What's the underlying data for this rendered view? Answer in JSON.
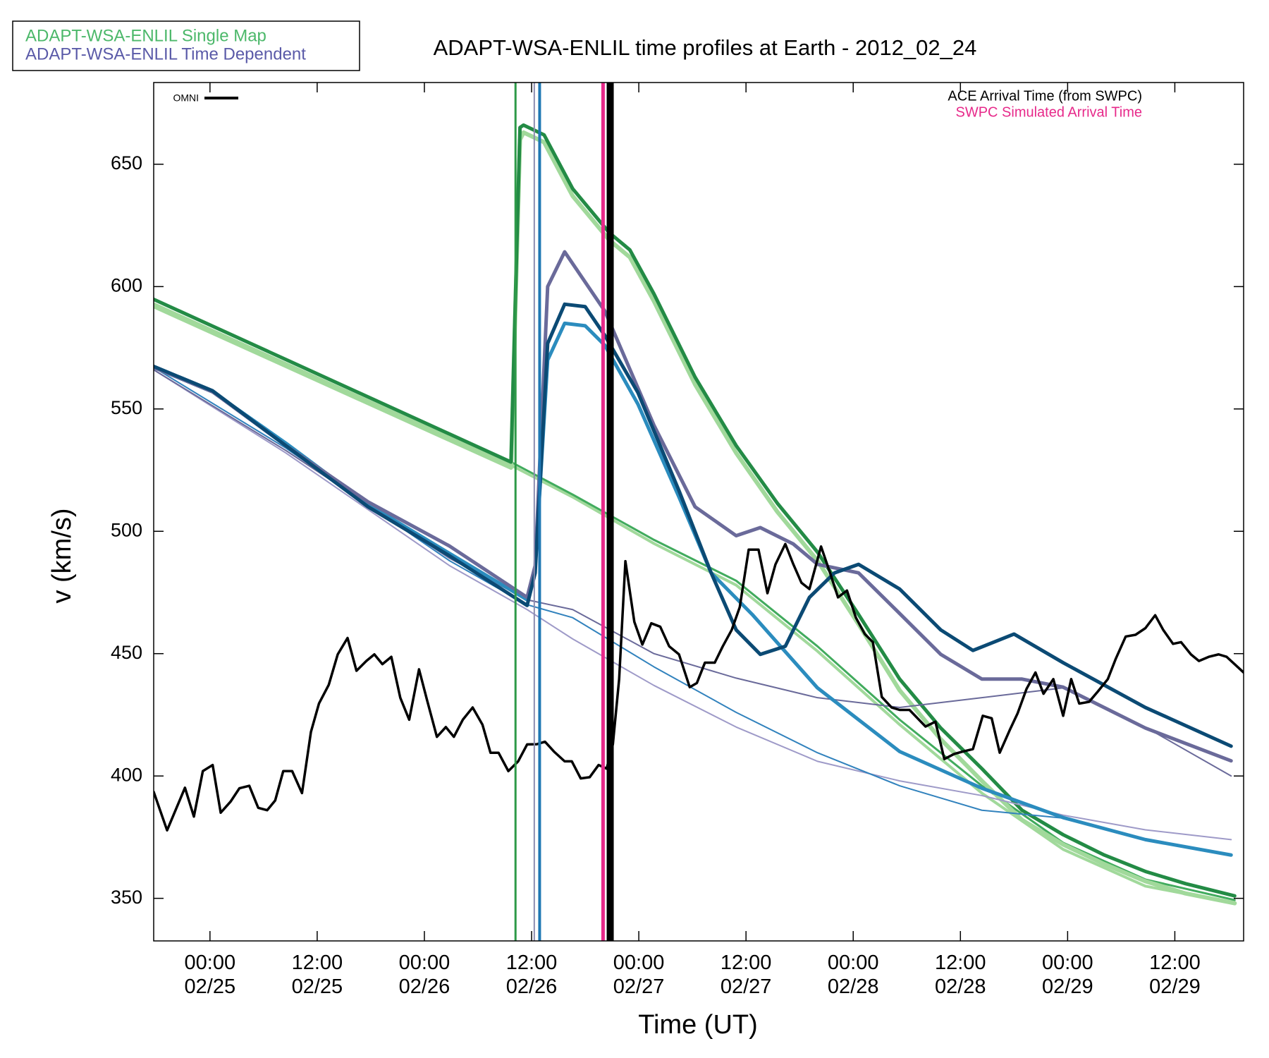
{
  "chart_data": {
    "type": "line",
    "title": "ADAPT-WSA-ENLIL time profiles at Earth - 2012_02_24",
    "x_label": "Time (UT)",
    "y_label": "v (km/s)",
    "legend": [
      {
        "name": "ADAPT-WSA-ENLIL Single Map",
        "color": "#4cb86a"
      },
      {
        "name": "ADAPT-WSA-ENLIL Time Dependent",
        "color": "#5a5aa8"
      }
    ],
    "xlim": [
      -6.3,
      115.7
    ],
    "ylim": [
      332.6,
      683.4
    ],
    "xticks": [
      {
        "value": 0,
        "label": "00:00\n02/25"
      },
      {
        "value": 12,
        "label": "12:00\n02/25"
      },
      {
        "value": 24,
        "label": "00:00\n02/26"
      },
      {
        "value": 36,
        "label": "12:00\n02/26"
      },
      {
        "value": 48,
        "label": "00:00\n02/27"
      },
      {
        "value": 60,
        "label": "12:00\n02/27"
      },
      {
        "value": 72,
        "label": "00:00\n02/28"
      },
      {
        "value": 84,
        "label": "12:00\n02/28"
      },
      {
        "value": 96,
        "label": "00:00\n02/29"
      },
      {
        "value": 108,
        "label": "12:00\n02/29"
      }
    ],
    "yticks": [
      350,
      400,
      450,
      500,
      550,
      600,
      650
    ],
    "vlines": [
      {
        "x": 34.2,
        "color": "#2e9a48",
        "width": 3
      },
      {
        "x": 36.3,
        "color": "#8c8cb0",
        "width": 2
      },
      {
        "x": 36.9,
        "color": "#1f78b4",
        "width": 4
      },
      {
        "x": 44.0,
        "color": "#e7298a",
        "width": 5,
        "label": "SWPC Simulated Arrival Time"
      },
      {
        "x": 44.8,
        "color": "#000000",
        "width": 10,
        "label": "ACE Arrival Time (from SWPC)"
      }
    ],
    "series": [
      {
        "color": "#a1d99b",
        "width": 4,
        "x": [
          -6.3,
          33.7,
          40.6,
          49.7,
          58.9,
          68.0,
          77.2,
          86.4,
          95.5,
          104.7,
          114.7
        ],
        "values": [
          593,
          527,
          514,
          495,
          478,
          451,
          421,
          393,
          370,
          355,
          348
        ]
      },
      {
        "color": "#41ab5d",
        "width": 3,
        "x": [
          -6.3,
          33.7,
          40.6,
          49.7,
          58.9,
          68.0,
          77.2,
          86.4,
          95.5,
          104.7,
          114.7
        ],
        "values": [
          594.8,
          528.3,
          515,
          496.5,
          479.8,
          453,
          423,
          396,
          372.7,
          357.7,
          349.3
        ]
      },
      {
        "color": "#a1d99b",
        "width": 6,
        "x": [
          -6.3,
          33.7,
          34.7,
          35.1,
          37.4,
          40.6,
          44.7,
          47.0,
          49.7,
          54.3,
          58.9,
          63.5,
          68.0,
          72.6,
          77.2,
          81.8,
          86.4,
          90.9,
          95.5,
          100.1,
          104.7,
          109.2,
          114.7
        ],
        "values": [
          592,
          526,
          660,
          663,
          659,
          637,
          619,
          612,
          594,
          560,
          532,
          508,
          488,
          462,
          435,
          415,
          398,
          382,
          372,
          364,
          357,
          352,
          348
        ]
      },
      {
        "color": "#238b45",
        "width": 5,
        "x": [
          -6.3,
          33.7,
          34.7,
          35.1,
          37.4,
          40.6,
          44.7,
          47.0,
          49.7,
          54.3,
          58.9,
          63.5,
          68.0,
          72.6,
          77.2,
          81.8,
          86.4,
          90.9,
          95.5,
          100.1,
          104.7,
          109.2,
          114.7
        ],
        "values": [
          594.8,
          528.3,
          665,
          666,
          662,
          640,
          622,
          615,
          597,
          563,
          535,
          511.5,
          491.5,
          466,
          439.6,
          419.6,
          403,
          386,
          376,
          367.7,
          361,
          356,
          351
        ]
      },
      {
        "color": "#9e9ac8",
        "width": 2,
        "x": [
          -6.3,
          8.5,
          26.8,
          35.5,
          40.6,
          49.7,
          58.9,
          68.0,
          77.2,
          86.4,
          95.5,
          104.7,
          114.3
        ],
        "values": [
          566,
          532,
          486,
          468,
          456,
          437,
          420,
          406,
          398,
          392,
          384,
          378,
          374
        ]
      },
      {
        "color": "#3182bd",
        "width": 2,
        "x": [
          -6.3,
          8.5,
          26.8,
          35.5,
          40.6,
          49.7,
          58.9,
          68.0,
          77.2,
          86.4,
          95.5
        ],
        "values": [
          567,
          534,
          488,
          470,
          464.7,
          444.6,
          426,
          409.5,
          396,
          386,
          382.8
        ]
      },
      {
        "color": "#6a6a9a",
        "width": 2,
        "x": [
          -6.3,
          8.5,
          26.8,
          35.5,
          40.6,
          49.7,
          58.9,
          68.0,
          77.2,
          86.4,
          95.5,
          104.7,
          114.3
        ],
        "values": [
          566,
          533,
          489,
          472,
          468,
          450,
          440,
          432,
          428,
          432,
          436,
          420,
          400
        ]
      },
      {
        "color": "#2b8cbe",
        "width": 5,
        "x": [
          -6.3,
          0.3,
          8.5,
          17.7,
          26.8,
          35.5,
          36.4,
          37.8,
          39.7,
          42.0,
          44.2,
          47.9,
          52.5,
          56.1,
          60.7,
          68.0,
          77.2,
          86.4,
          95.5,
          104.7,
          114.3
        ],
        "values": [
          567,
          557,
          536,
          511,
          491,
          472,
          485,
          570,
          585,
          584,
          576,
          552,
          514,
          483,
          466,
          436,
          410,
          395,
          383,
          374,
          367.7
        ]
      },
      {
        "color": "#6a6a9a",
        "width": 5,
        "x": [
          -6.3,
          0.3,
          8.5,
          17.7,
          26.8,
          35.5,
          36.4,
          37.8,
          39.7,
          44.2,
          49.7,
          54.3,
          58.9,
          61.6,
          65.3,
          68.0,
          72.6,
          77.2,
          81.8,
          86.4,
          90.9,
          95.5,
          104.7,
          114.3
        ],
        "values": [
          567,
          557,
          535,
          512,
          494,
          473,
          486,
          600,
          614.2,
          590,
          543.3,
          510,
          498.2,
          501.5,
          494.8,
          486.5,
          483,
          466.4,
          449.7,
          439.6,
          439.6,
          436.3,
          419.6,
          406.2
        ]
      },
      {
        "color": "#0b4a74",
        "width": 5,
        "x": [
          -6.3,
          0.3,
          8.5,
          17.7,
          26.8,
          35.5,
          36.4,
          37.8,
          39.7,
          42.0,
          44.2,
          47.9,
          52.5,
          56.1,
          58.9,
          61.6,
          64.4,
          67.1,
          69.9,
          72.6,
          77.2,
          81.8,
          85.4,
          90.0,
          95.5,
          104.7,
          114.3
        ],
        "values": [
          567.4,
          557.4,
          535,
          510,
          490,
          469.7,
          483,
          576.8,
          592.8,
          591.8,
          580,
          556.7,
          516.6,
          483,
          459.7,
          449.7,
          453,
          473,
          483,
          486.5,
          476.4,
          459.7,
          451.3,
          458,
          446.3,
          428,
          412.2
        ]
      },
      {
        "color": "#000000",
        "width": 3.5,
        "name": "OMNI",
        "x": [
          -6.3,
          -4.8,
          -2.8,
          -1.8,
          -0.8,
          0.3,
          1.2,
          2.3,
          3.3,
          4.4,
          5.4,
          6.4,
          7.3,
          8.2,
          9.2,
          10.3,
          11.3,
          12.2,
          13.3,
          14.3,
          15.4,
          16.4,
          17.5,
          18.4,
          19.3,
          20.3,
          21.3,
          22.3,
          23.4,
          24.3,
          25.4,
          26.4,
          27.3,
          28.3,
          29.4,
          30.5,
          31.4,
          32.3,
          33.4,
          34.5,
          35.5,
          36.6,
          37.5,
          38.5,
          39.7,
          40.5,
          41.5,
          42.5,
          43.5,
          44.4,
          45.1,
          45.8,
          46.5,
          47.5,
          48.4,
          49.4,
          50.4,
          51.4,
          52.5,
          53.7,
          54.5,
          55.4,
          56.5,
          57.4,
          58.4,
          59.3,
          60.3,
          61.4,
          62.4,
          63.3,
          64.4,
          65.3,
          66.2,
          67.1,
          68.4,
          69.4,
          70.3,
          71.3,
          72.3,
          73.3,
          74.2,
          75.2,
          76.3,
          77.2,
          78.3,
          79.2,
          80.1,
          81.2,
          82.2,
          83.3,
          84.3,
          85.4,
          86.5,
          87.5,
          88.4,
          89.5,
          90.4,
          91.4,
          92.4,
          93.3,
          94.4,
          95.5,
          96.4,
          97.3,
          98.4,
          99.4,
          100.5,
          101.4,
          102.5,
          103.6,
          104.7,
          105.8,
          106.7,
          107.8,
          108.7,
          109.8,
          110.7,
          111.8,
          112.9,
          113.8,
          115.7
        ],
        "values": [
          393.5,
          377.8,
          395.2,
          383.4,
          402,
          404.5,
          385,
          389.5,
          395,
          396,
          387,
          386,
          390,
          402,
          402,
          393,
          418,
          429.6,
          437.3,
          449.7,
          456.4,
          443,
          447,
          449.7,
          445.7,
          448.7,
          432,
          423,
          443.6,
          431,
          416,
          420,
          416,
          423,
          428,
          421,
          409.5,
          409.5,
          402,
          406,
          412.9,
          413,
          414,
          410,
          406,
          406,
          399,
          399.5,
          404.5,
          403,
          413,
          439.6,
          487.8,
          463,
          453.7,
          462.4,
          461,
          453,
          449.7,
          436.3,
          438,
          446.3,
          446.3,
          453,
          459.7,
          469,
          492.5,
          492.5,
          474.7,
          486.5,
          494.8,
          486.5,
          479,
          476.4,
          493.8,
          483.1,
          473,
          475.8,
          464.7,
          458,
          454.7,
          432.3,
          428,
          427,
          427,
          423.6,
          420.2,
          422.2,
          406.9,
          409,
          410,
          411,
          424.6,
          423.6,
          409.5,
          418.6,
          425.6,
          435.6,
          442.3,
          433.6,
          439.6,
          424.6,
          439.6,
          429.6,
          430.3,
          434.6,
          439.6,
          448,
          457,
          457.7,
          460.4,
          465.7,
          459.7,
          454,
          454.7,
          449.7,
          447,
          448.7,
          449.7,
          448.7,
          442.3
        ]
      }
    ]
  }
}
